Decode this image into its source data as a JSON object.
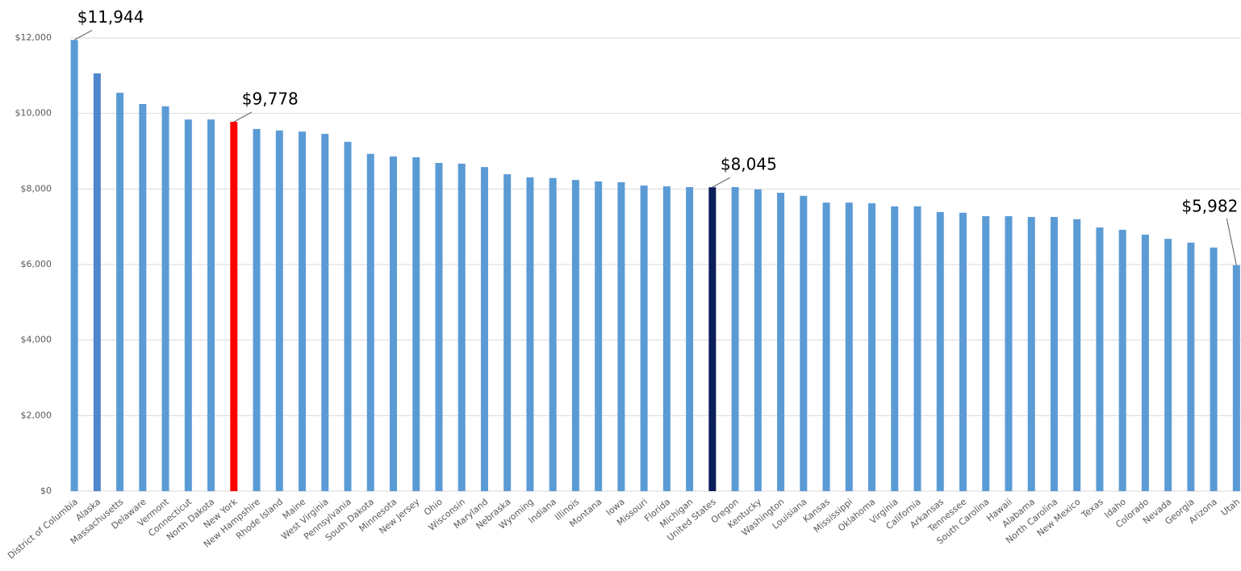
{
  "chart_data": {
    "type": "bar",
    "categories": [
      "District of Columbia",
      "Alaska",
      "Massachusetts",
      "Delaware",
      "Vermont",
      "Connecticut",
      "North Dakota",
      "New York",
      "New Hampshire",
      "Rhode Island",
      "Maine",
      "West Virginia",
      "Pennsylvania",
      "South Dakota",
      "Minnesota",
      "New Jersey",
      "Ohio",
      "Wisconsin",
      "Maryland",
      "Nebraska",
      "Wyoming",
      "Indiana",
      "Illinois",
      "Montana",
      "Iowa",
      "Missouri",
      "Florida",
      "Michigan",
      "United States",
      "Oregon",
      "Kentucky",
      "Washington",
      "Louisiana",
      "Kansas",
      "Mississippi",
      "Oklahoma",
      "Virginia",
      "California",
      "Arkansas",
      "Tennessee",
      "South Carolina",
      "Hawaii",
      "Alabama",
      "North Carolina",
      "New Mexico",
      "Texas",
      "Idaho",
      "Colorado",
      "Nevada",
      "Georgia",
      "Arizona",
      "Utah"
    ],
    "values": [
      11944,
      11060,
      10550,
      10250,
      10190,
      9840,
      9840,
      9778,
      9590,
      9550,
      9520,
      9460,
      9250,
      8930,
      8860,
      8840,
      8690,
      8670,
      8580,
      8390,
      8310,
      8290,
      8240,
      8200,
      8180,
      8090,
      8070,
      8050,
      8045,
      8050,
      7990,
      7900,
      7820,
      7640,
      7640,
      7620,
      7540,
      7540,
      7390,
      7370,
      7280,
      7280,
      7260,
      7260,
      7200,
      6980,
      6920,
      6790,
      6680,
      6580,
      6450,
      5982
    ],
    "value_labels": [
      "$11,944",
      null,
      null,
      null,
      null,
      null,
      null,
      "$9,778",
      null,
      null,
      null,
      null,
      null,
      null,
      null,
      null,
      null,
      null,
      null,
      null,
      null,
      null,
      null,
      null,
      null,
      null,
      null,
      null,
      "$8,045",
      null,
      null,
      null,
      null,
      null,
      null,
      null,
      null,
      null,
      null,
      null,
      null,
      null,
      null,
      null,
      null,
      null,
      null,
      null,
      null,
      null,
      null,
      "$5,982"
    ],
    "colors": [
      "#5b9bd5",
      "#4f86cc",
      "#5b9bd5",
      "#5b9bd5",
      "#5b9bd5",
      "#5b9bd5",
      "#5b9bd5",
      "#ff0000",
      "#5b9bd5",
      "#5b9bd5",
      "#5b9bd5",
      "#5b9bd5",
      "#5b9bd5",
      "#5b9bd5",
      "#5b9bd5",
      "#5b9bd5",
      "#5b9bd5",
      "#5b9bd5",
      "#5b9bd5",
      "#5b9bd5",
      "#5b9bd5",
      "#5b9bd5",
      "#5b9bd5",
      "#5b9bd5",
      "#5b9bd5",
      "#5b9bd5",
      "#5b9bd5",
      "#5b9bd5",
      "#0c1e5a",
      "#5b9bd5",
      "#5b9bd5",
      "#5b9bd5",
      "#5b9bd5",
      "#5b9bd5",
      "#5b9bd5",
      "#5b9bd5",
      "#5b9bd5",
      "#5b9bd5",
      "#5b9bd5",
      "#5b9bd5",
      "#5b9bd5",
      "#5b9bd5",
      "#5b9bd5",
      "#5b9bd5",
      "#5b9bd5",
      "#5b9bd5",
      "#5b9bd5",
      "#5b9bd5",
      "#5b9bd5",
      "#5b9bd5",
      "#5b9bd5",
      "#5b9bd5"
    ],
    "ylim": [
      0,
      12000
    ],
    "yticks": [
      {
        "value": 0,
        "label": "$0"
      },
      {
        "value": 2000,
        "label": "$2,000"
      },
      {
        "value": 4000,
        "label": "$4,000"
      },
      {
        "value": 6000,
        "label": "$6,000"
      },
      {
        "value": 8000,
        "label": "$8,000"
      },
      {
        "value": 10000,
        "label": "$10,000"
      },
      {
        "value": 12000,
        "label": "$12,000"
      }
    ],
    "grid": true
  }
}
